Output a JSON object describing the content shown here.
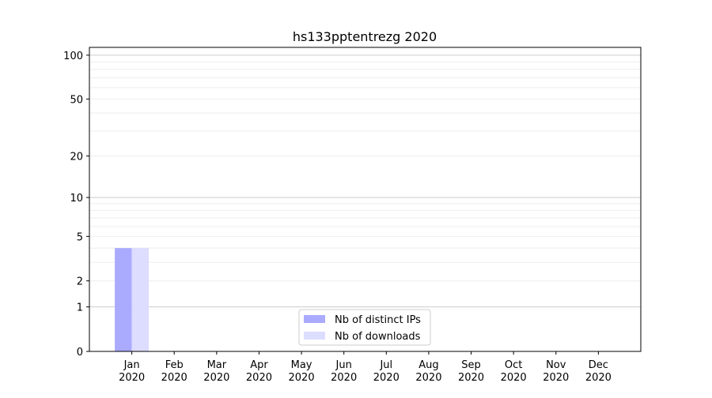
{
  "chart_data": {
    "type": "bar",
    "title": "hs133pptentrezg 2020",
    "xlabel": "",
    "ylabel": "",
    "yscale": "log(y+1)",
    "ylim": [
      0,
      113
    ],
    "yticks": [
      0,
      1,
      2,
      5,
      10,
      20,
      50,
      100
    ],
    "grid": true,
    "legend_position": "bottom-center",
    "categories": [
      "Jan\n2020",
      "Feb\n2020",
      "Mar\n2020",
      "Apr\n2020",
      "May\n2020",
      "Jun\n2020",
      "Jul\n2020",
      "Aug\n2020",
      "Sep\n2020",
      "Oct\n2020",
      "Nov\n2020",
      "Dec\n2020"
    ],
    "series": [
      {
        "name": "Nb of distinct IPs",
        "color": "#aaaaff",
        "values": [
          4,
          0,
          0,
          0,
          0,
          0,
          0,
          0,
          0,
          0,
          0,
          0
        ]
      },
      {
        "name": "Nb of downloads",
        "color": "#ddddff",
        "values": [
          4,
          0,
          0,
          0,
          0,
          0,
          0,
          0,
          0,
          0,
          0,
          0
        ]
      }
    ]
  }
}
